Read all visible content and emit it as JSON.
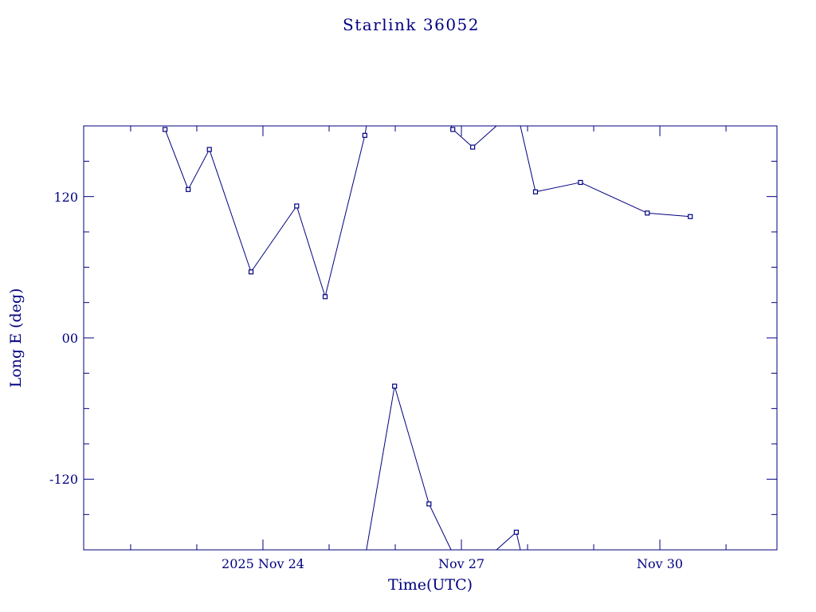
{
  "page": {
    "background_color": "#ffffff",
    "accent_color": "#000080"
  },
  "chart_data": {
    "type": "line",
    "title": "Starlink 36052",
    "xlabel": "Time(UTC)",
    "ylabel": "Long E (deg)",
    "x_unit": "day of November 2025 (UTC)",
    "xlim": [
      21.29,
      31.77
    ],
    "ylim": [
      -180,
      180
    ],
    "wrap_y_period": 360,
    "grid": "off",
    "legend": "none",
    "marker": "open-square",
    "line_color": "#000080",
    "points": [
      {
        "t": 22.52,
        "lon": 177
      },
      {
        "t": 22.87,
        "lon": 126
      },
      {
        "t": 23.19,
        "lon": 160
      },
      {
        "t": 23.82,
        "lon": 56
      },
      {
        "t": 24.51,
        "lon": 112
      },
      {
        "t": 24.94,
        "lon": 35
      },
      {
        "t": 25.54,
        "lon": 172
      },
      {
        "t": 25.99,
        "lon": -41
      },
      {
        "t": 26.51,
        "lon": -141
      },
      {
        "t": 26.87,
        "lon": 177
      },
      {
        "t": 27.17,
        "lon": 162
      },
      {
        "t": 27.83,
        "lon": -165
      },
      {
        "t": 28.12,
        "lon": 124
      },
      {
        "t": 28.8,
        "lon": 132
      },
      {
        "t": 29.81,
        "lon": 106
      },
      {
        "t": 30.46,
        "lon": 103
      }
    ],
    "xticks": [
      {
        "value": 24,
        "label": "2025 Nov 24"
      },
      {
        "value": 27,
        "label": "Nov 27"
      },
      {
        "value": 30,
        "label": "Nov 30"
      }
    ],
    "yticks": [
      {
        "value": 120,
        "label": "120"
      },
      {
        "value": 0,
        "label": "00"
      },
      {
        "value": -120,
        "label": "-120"
      }
    ],
    "minor_xtick_step_days": 1,
    "minor_ytick_step": 30
  }
}
